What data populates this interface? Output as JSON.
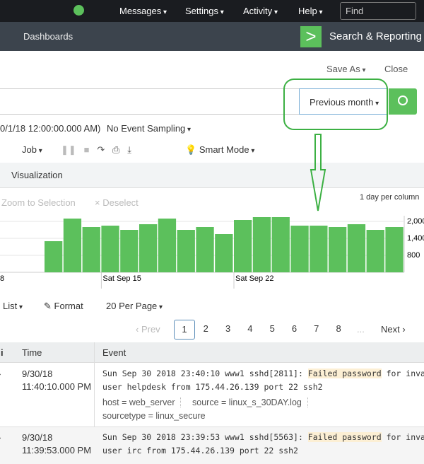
{
  "nav": {
    "items": [
      "Messages",
      "Settings",
      "Activity",
      "Help"
    ],
    "find_placeholder": "Find"
  },
  "app_bar": {
    "tab": "Dashboards",
    "app_name": "Search & Reporting"
  },
  "actions": {
    "save_as": "Save As",
    "close": "Close"
  },
  "search": {
    "time_range": "Previous month"
  },
  "status": {
    "range_text": "0/1/18 12:00:00.000 AM)",
    "sampling": "No Event Sampling"
  },
  "job_bar": {
    "job": "Job",
    "mode": "Smart Mode"
  },
  "tabs": {
    "visualization": "Visualization"
  },
  "timeline_bar": {
    "zoom": "Zoom to Selection",
    "deselect": "× Deselect",
    "scale": "1 day per column"
  },
  "chart_data": {
    "type": "bar",
    "color": "#5cc05c",
    "grid": true,
    "categories": [
      null,
      null,
      null,
      "Sat Sep 15",
      null,
      null,
      null,
      null,
      null,
      null,
      "Sat Sep 22",
      null,
      null,
      null,
      null,
      null,
      null,
      null,
      null
    ],
    "cut_label": "8",
    "values": [
      1300,
      2100,
      1800,
      1850,
      1700,
      1900,
      2100,
      1700,
      1800,
      1550,
      2050,
      2150,
      2150,
      1850,
      1850,
      1800,
      1900,
      1700,
      1800
    ],
    "ylim": [
      200,
      2200
    ],
    "yticks": [
      {
        "value": 800,
        "label": "800"
      },
      {
        "value": 1400,
        "label": "1,400"
      },
      {
        "value": 2000,
        "label": "2,000"
      }
    ]
  },
  "results_bar": {
    "list": "List",
    "format": "Format",
    "per_page": "20 Per Page"
  },
  "pagination": {
    "prev": "‹ Prev",
    "pages": [
      "1",
      "2",
      "3",
      "4",
      "5",
      "6",
      "7",
      "8"
    ],
    "ellipsis": "...",
    "next": "Next ›"
  },
  "table": {
    "headers": [
      "i",
      "Time",
      "Event"
    ],
    "rows": [
      {
        "date": "9/30/18",
        "time": "11:40:10.000 PM",
        "event_parts": [
          "Sun Sep 30 2018 23:40:10 www1 sshd[2811]: ",
          "Failed password",
          " for invalid"
        ],
        "event_line2": "user helpdesk from 175.44.26.139 port 22 ssh2",
        "fields": [
          "host = web_server",
          "source = linux_s_30DAY.log",
          "sourcetype = linux_secure"
        ]
      },
      {
        "date": "9/30/18",
        "time": "11:39:53.000 PM",
        "event_parts": [
          "Sun Sep 30 2018 23:39:53 www1 sshd[5563]: ",
          "Failed password",
          " for invalid"
        ],
        "event_line2": "user irc from 175.44.26.139 port 22 ssh2",
        "fields": []
      }
    ]
  }
}
